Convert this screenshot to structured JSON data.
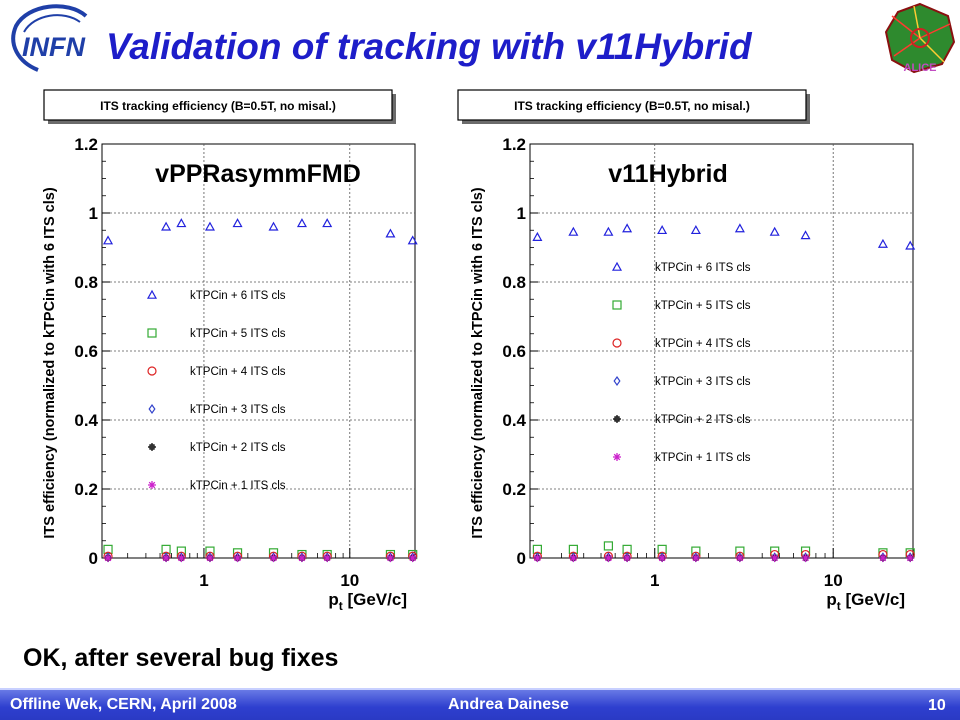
{
  "slide": {
    "title": "Validation of tracking with v11Hybrid",
    "note": "OK, after several bug fixes",
    "title_color": "#1d1dc9"
  },
  "logos": {
    "left": {
      "icon": "infn-logo",
      "text": "INFN"
    },
    "right": {
      "icon": "alice-logo",
      "text": "ALICE"
    }
  },
  "footer": {
    "left": "Offline Wek, CERN, April 2008",
    "center": "Andrea Dainese",
    "page": "10",
    "color": "#2e3fcf"
  },
  "chart_data": [
    {
      "type": "scatter",
      "title": "ITS tracking efficiency (B=0.5T, no misal.)",
      "overlay_label": "vPPRasymmFMD",
      "ylabel": "ITS efficiency (normalized to kTPCin with 6 ITS cls)",
      "xlabel_main": "p",
      "xlabel_sub": "t",
      "xlabel_unit": "[GeV/c]",
      "xscale": "log",
      "xlim": [
        0.2,
        28
      ],
      "ylim": [
        0,
        1.2
      ],
      "xticks": [
        {
          "v": 1,
          "label": "1"
        },
        {
          "v": 10,
          "label": "10"
        }
      ],
      "yticks": [
        {
          "v": 0,
          "label": "0"
        },
        {
          "v": 0.2,
          "label": "0.2"
        },
        {
          "v": 0.4,
          "label": "0.4"
        },
        {
          "v": 0.6,
          "label": "0.6"
        },
        {
          "v": 0.8,
          "label": "0.8"
        },
        {
          "v": 1,
          "label": "1"
        },
        {
          "v": 1.2,
          "label": "1.2"
        }
      ],
      "grid": true,
      "legend_position": "left-center",
      "x": [
        0.22,
        0.35,
        0.55,
        0.7,
        1.1,
        1.7,
        3.0,
        4.7,
        7.0,
        11.0,
        19.0,
        27.0
      ],
      "series": [
        {
          "name": "kTPCin + 6 ITS cls",
          "marker": "triangle",
          "color": "#2222dd",
          "values": [
            0.92,
            null,
            0.96,
            0.97,
            0.96,
            0.97,
            0.96,
            0.97,
            0.97,
            null,
            0.94,
            0.92
          ]
        },
        {
          "name": "kTPCin + 5 ITS cls",
          "marker": "square",
          "color": "#33aa33",
          "values": [
            0.025,
            null,
            0.025,
            0.02,
            0.02,
            0.015,
            0.015,
            0.01,
            0.01,
            null,
            0.01,
            0.01
          ]
        },
        {
          "name": "kTPCin + 4 ITS cls",
          "marker": "circle",
          "color": "#dd2222",
          "values": [
            0.005,
            null,
            0.005,
            0.005,
            0.005,
            0.005,
            0.005,
            0.005,
            0.005,
            null,
            0.005,
            0.005
          ]
        },
        {
          "name": "kTPCin + 3 ITS cls",
          "marker": "diamond",
          "color": "#3344cc",
          "values": [
            0.002,
            null,
            0.002,
            0.002,
            0.002,
            0.002,
            0.002,
            0.002,
            0.002,
            null,
            0.002,
            0.002
          ]
        },
        {
          "name": "kTPCin + 2 ITS cls",
          "marker": "cross",
          "color": "#222222",
          "values": [
            0,
            null,
            0,
            0,
            0,
            0,
            0,
            0,
            0,
            null,
            0,
            0
          ]
        },
        {
          "name": "kTPCin + 1 ITS cls",
          "marker": "star",
          "color": "#cc22cc",
          "values": [
            0,
            null,
            0,
            0,
            0,
            0,
            0,
            0,
            0,
            null,
            0,
            0
          ]
        }
      ]
    },
    {
      "type": "scatter",
      "title": "ITS tracking efficiency (B=0.5T, no misal.)",
      "overlay_label": "v11Hybrid",
      "ylabel": "ITS efficiency (normalized to kTPCin with 6 ITS cls)",
      "xlabel_main": "p",
      "xlabel_sub": "t",
      "xlabel_unit": "[GeV/c]",
      "xscale": "log",
      "xlim": [
        0.2,
        28
      ],
      "ylim": [
        0,
        1.2
      ],
      "xticks": [
        {
          "v": 1,
          "label": "1"
        },
        {
          "v": 10,
          "label": "10"
        }
      ],
      "yticks": [
        {
          "v": 0,
          "label": "0"
        },
        {
          "v": 0.2,
          "label": "0.2"
        },
        {
          "v": 0.4,
          "label": "0.4"
        },
        {
          "v": 0.6,
          "label": "0.6"
        },
        {
          "v": 0.8,
          "label": "0.8"
        },
        {
          "v": 1,
          "label": "1"
        },
        {
          "v": 1.2,
          "label": "1.2"
        }
      ],
      "grid": true,
      "legend_position": "right-center",
      "x": [
        0.22,
        0.35,
        0.55,
        0.7,
        1.1,
        1.7,
        3.0,
        4.7,
        7.0,
        11.0,
        19.0,
        27.0
      ],
      "series": [
        {
          "name": "kTPCin + 6 ITS cls",
          "marker": "triangle",
          "color": "#2222dd",
          "values": [
            0.93,
            0.945,
            0.945,
            0.955,
            0.95,
            0.95,
            0.955,
            0.945,
            0.935,
            null,
            0.91,
            0.905
          ]
        },
        {
          "name": "kTPCin + 5 ITS cls",
          "marker": "square",
          "color": "#33aa33",
          "values": [
            0.025,
            0.025,
            0.035,
            0.025,
            0.025,
            0.02,
            0.02,
            0.02,
            0.02,
            null,
            0.015,
            0.015
          ]
        },
        {
          "name": "kTPCin + 4 ITS cls",
          "marker": "circle",
          "color": "#dd2222",
          "values": [
            0.005,
            0.005,
            0.005,
            0.005,
            0.005,
            0.005,
            0.005,
            0.01,
            0.01,
            null,
            0.01,
            0.01
          ]
        },
        {
          "name": "kTPCin + 3 ITS cls",
          "marker": "diamond",
          "color": "#3344cc",
          "values": [
            0.002,
            0.002,
            0.002,
            0.002,
            0.002,
            0.002,
            0.002,
            0.002,
            0.002,
            null,
            0.002,
            0.002
          ]
        },
        {
          "name": "kTPCin + 2 ITS cls",
          "marker": "cross",
          "color": "#222222",
          "values": [
            0,
            0,
            0,
            0,
            0,
            0,
            0,
            0,
            0,
            null,
            0,
            0
          ]
        },
        {
          "name": "kTPCin + 1 ITS cls",
          "marker": "star",
          "color": "#cc22cc",
          "values": [
            0,
            0,
            0,
            0,
            0,
            0,
            0,
            0,
            0,
            null,
            0,
            0
          ]
        }
      ]
    }
  ]
}
